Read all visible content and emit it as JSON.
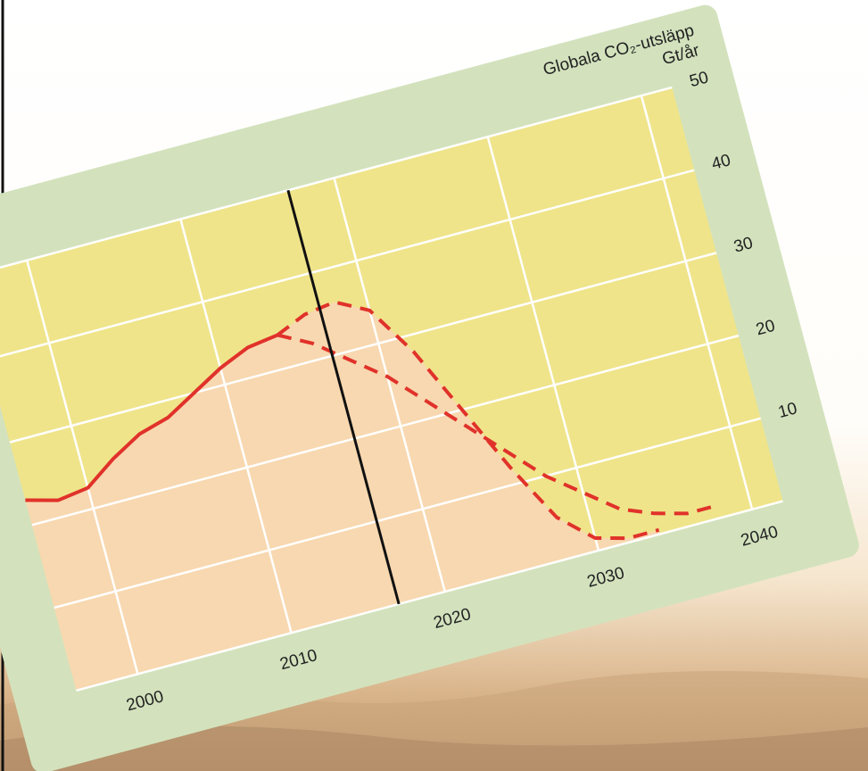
{
  "chart_data": {
    "type": "line",
    "title": "Globala CO₂-utsläpp",
    "y_label": "Gt/år",
    "xlim": [
      1996,
      2042
    ],
    "xticks": [
      2000,
      2010,
      2020,
      2030,
      2040
    ],
    "ylim": [
      0,
      50
    ],
    "yticks": [
      10,
      20,
      30,
      40,
      50
    ],
    "grid": true,
    "reference_x": 2017,
    "series": [
      {
        "color": "#e0322a",
        "style": "solid",
        "x": [
          1996,
          1998,
          2000,
          2002,
          2004,
          2006,
          2008,
          2010,
          2012,
          2014
        ],
        "values": [
          23,
          22,
          22.5,
          25,
          27,
          28,
          30,
          32,
          33.5,
          34
        ]
      },
      {
        "color": "#e0322a",
        "style": "dashed",
        "x": [
          2014,
          2016,
          2018,
          2020,
          2022,
          2024,
          2026,
          2028,
          2030,
          2032,
          2034
        ],
        "values": [
          34,
          35.5,
          36,
          34,
          28,
          20,
          12,
          5,
          1.5,
          0.5,
          0.5
        ]
      },
      {
        "color": "#e0322a",
        "style": "dashed",
        "x": [
          2014,
          2016,
          2018,
          2020,
          2022,
          2024,
          2026,
          2028,
          2030,
          2032,
          2034,
          2036,
          2038
        ],
        "values": [
          34,
          32,
          29,
          26,
          22,
          18,
          14,
          10,
          7,
          4,
          2.5,
          1.5,
          1.5
        ]
      }
    ]
  }
}
